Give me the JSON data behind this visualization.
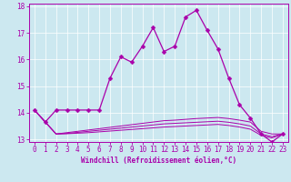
{
  "xlabel": "Windchill (Refroidissement éolien,°C)",
  "bg_color": "#cce8f0",
  "line_color": "#aa00aa",
  "ylim": [
    12.9,
    18.1
  ],
  "xlim": [
    -0.5,
    23.5
  ],
  "yticks": [
    13,
    14,
    15,
    16,
    17,
    18
  ],
  "xticks": [
    0,
    1,
    2,
    3,
    4,
    5,
    6,
    7,
    8,
    9,
    10,
    11,
    12,
    13,
    14,
    15,
    16,
    17,
    18,
    19,
    20,
    21,
    22,
    23
  ],
  "series1_x": [
    0,
    1,
    2,
    3,
    4,
    5,
    6,
    7,
    8,
    9,
    10,
    11,
    12,
    13,
    14,
    15,
    16,
    17,
    18,
    19,
    20,
    21,
    22,
    23
  ],
  "series1_y": [
    14.1,
    13.65,
    14.1,
    14.1,
    14.1,
    14.1,
    14.1,
    15.3,
    16.1,
    15.9,
    16.5,
    17.2,
    16.3,
    16.5,
    17.6,
    17.85,
    17.1,
    16.4,
    15.3,
    14.3,
    13.8,
    13.2,
    12.9,
    13.2
  ],
  "series2_x": [
    0,
    1,
    2,
    3,
    4,
    5,
    6,
    7,
    8,
    9,
    10,
    11,
    12,
    13,
    14,
    15,
    16,
    17,
    18,
    19,
    20,
    21,
    22,
    23
  ],
  "series2_y": [
    14.1,
    13.65,
    13.2,
    13.25,
    13.3,
    13.35,
    13.4,
    13.45,
    13.5,
    13.55,
    13.6,
    13.65,
    13.7,
    13.72,
    13.75,
    13.78,
    13.8,
    13.82,
    13.78,
    13.72,
    13.65,
    13.3,
    13.2,
    13.2
  ],
  "series3_x": [
    0,
    1,
    2,
    3,
    4,
    5,
    6,
    7,
    8,
    9,
    10,
    11,
    12,
    13,
    14,
    15,
    16,
    17,
    18,
    19,
    20,
    21,
    22,
    23
  ],
  "series3_y": [
    14.1,
    13.65,
    13.2,
    13.22,
    13.26,
    13.3,
    13.34,
    13.38,
    13.42,
    13.46,
    13.5,
    13.54,
    13.58,
    13.6,
    13.62,
    13.64,
    13.66,
    13.68,
    13.64,
    13.58,
    13.5,
    13.2,
    13.1,
    13.2
  ],
  "series4_x": [
    0,
    1,
    2,
    3,
    4,
    5,
    6,
    7,
    8,
    9,
    10,
    11,
    12,
    13,
    14,
    15,
    16,
    17,
    18,
    19,
    20,
    21,
    22,
    23
  ],
  "series4_y": [
    14.1,
    13.65,
    13.2,
    13.21,
    13.23,
    13.25,
    13.28,
    13.31,
    13.34,
    13.37,
    13.4,
    13.43,
    13.46,
    13.48,
    13.5,
    13.52,
    13.54,
    13.56,
    13.52,
    13.46,
    13.38,
    13.15,
    13.05,
    13.2
  ],
  "tick_fontsize": 5.5,
  "xlabel_fontsize": 5.5
}
